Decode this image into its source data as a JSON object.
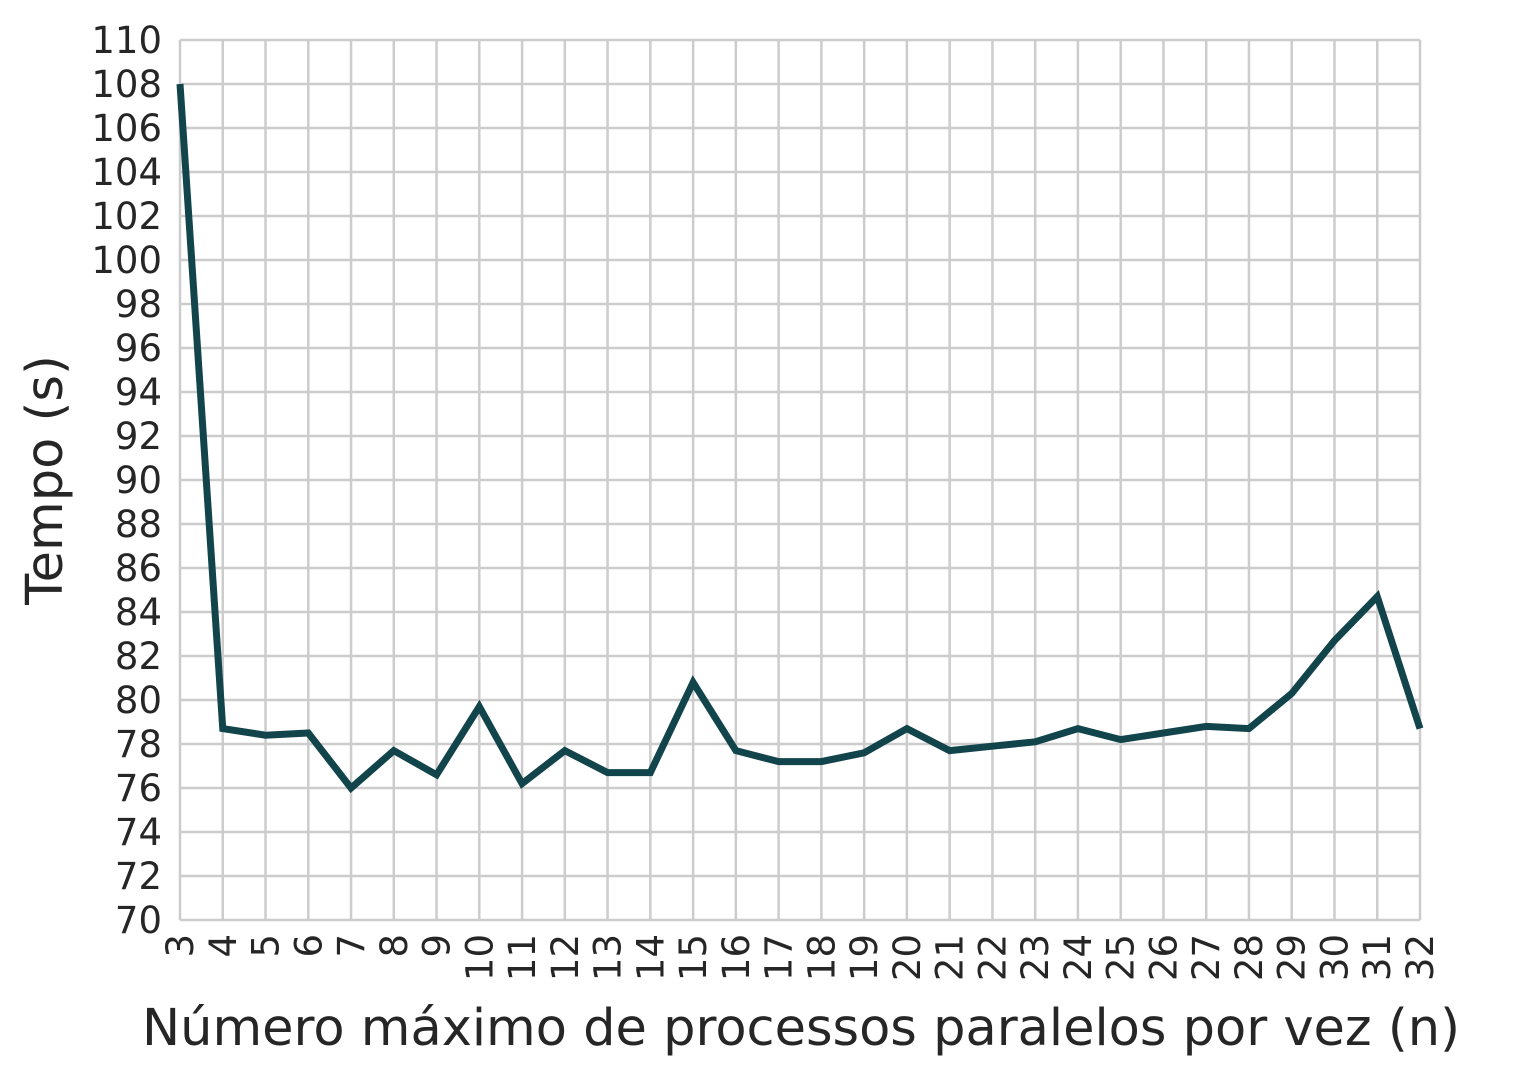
{
  "chart_data": {
    "type": "line",
    "title": "",
    "xlabel": "Número máximo de processos paralelos por vez (n)",
    "ylabel": "Tempo (s)",
    "x": [
      3,
      4,
      5,
      6,
      7,
      8,
      9,
      10,
      11,
      12,
      13,
      14,
      15,
      16,
      17,
      18,
      19,
      20,
      21,
      22,
      23,
      24,
      25,
      26,
      27,
      28,
      29,
      30,
      31,
      32
    ],
    "series": [
      {
        "name": "",
        "color": "#12444c",
        "values": [
          108.0,
          78.7,
          78.4,
          78.5,
          76.0,
          77.7,
          76.6,
          79.7,
          76.2,
          77.7,
          76.7,
          76.7,
          80.8,
          77.7,
          77.2,
          77.2,
          77.6,
          78.7,
          77.7,
          77.9,
          78.1,
          78.7,
          78.2,
          78.5,
          78.8,
          78.7,
          80.3,
          82.7,
          84.7,
          78.7
        ]
      }
    ],
    "xlim": [
      3,
      32
    ],
    "ylim": [
      70,
      110
    ],
    "ytick_step": 2,
    "grid": true,
    "legend": "none"
  }
}
